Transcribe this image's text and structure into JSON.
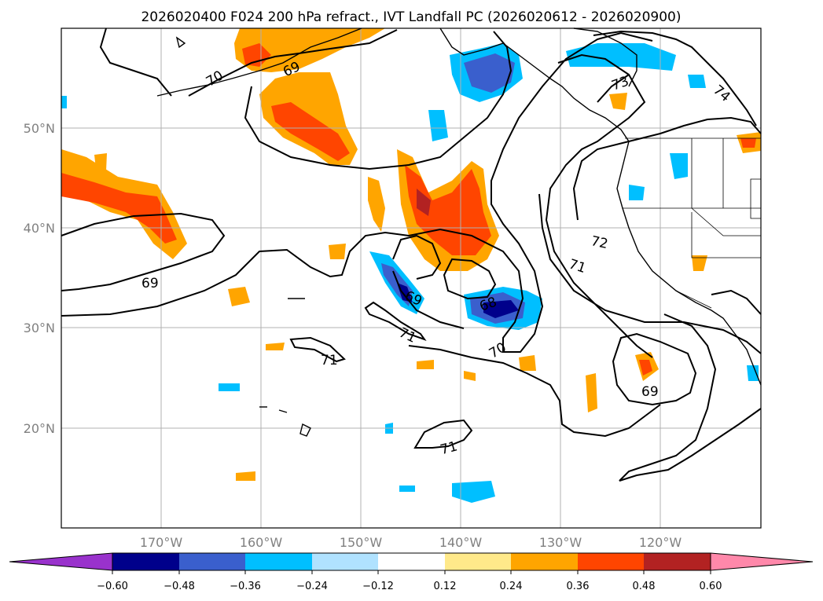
{
  "title": "2026020400 F024 200 hPa refract., IVT Landfall PC (2026020612 - 2026020900)",
  "map": {
    "lon_labels": [
      "170°W",
      "160°W",
      "150°W",
      "140°W",
      "130°W",
      "120°W"
    ],
    "lat_labels": [
      "50°N",
      "40°N",
      "30°N",
      "20°N"
    ]
  },
  "contour_labels": [
    "70",
    "69",
    "73",
    "74",
    "72",
    "71",
    "69",
    "69",
    "68",
    "71",
    "70",
    "71",
    "69",
    "71"
  ],
  "colorbar": {
    "ticks": [
      "−0.60",
      "−0.48",
      "−0.36",
      "−0.24",
      "−0.12",
      "0.12",
      "0.24",
      "0.36",
      "0.48",
      "0.60"
    ],
    "colors": [
      "#9932cc",
      "#00008b",
      "#3a5fcd",
      "#00bfff",
      "#b0e2ff",
      "#ffffff",
      "#ffe98a",
      "#ffa500",
      "#ff4500",
      "#b22222",
      "#ff88aa"
    ]
  }
}
